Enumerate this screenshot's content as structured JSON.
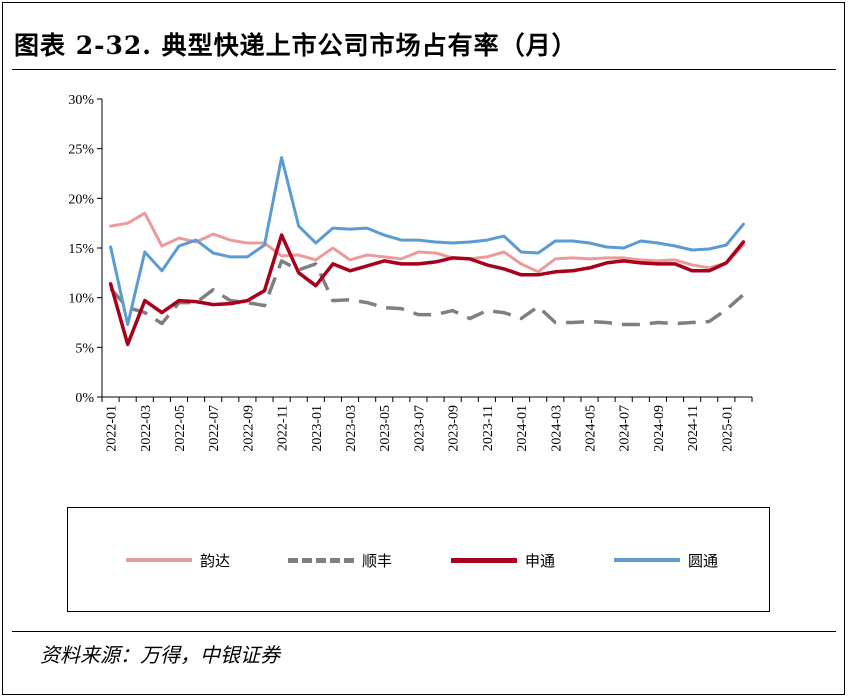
{
  "header": {
    "title": "图表 2-32. 典型快递上市公司市场占有率（月）"
  },
  "footer": {
    "source": "资料来源：万得，中银证券"
  },
  "colors": {
    "yunda": "#ec9b9b",
    "sf": "#7f7f7f",
    "sto": "#a8001c",
    "yto": "#5b9bd5"
  },
  "chart_data": {
    "type": "line",
    "title": "",
    "xlabel": "",
    "ylabel": "",
    "y_unit": "%",
    "ylim": [
      0,
      30
    ],
    "yticks": [
      "0%",
      "5%",
      "10%",
      "15%",
      "20%",
      "25%",
      "30%"
    ],
    "x": [
      "2022-01",
      "2022-02",
      "2022-03",
      "2022-04",
      "2022-05",
      "2022-06",
      "2022-07",
      "2022-08",
      "2022-09",
      "2022-10",
      "2022-11",
      "2022-12",
      "2023-01",
      "2023-02",
      "2023-03",
      "2023-04",
      "2023-05",
      "2023-06",
      "2023-07",
      "2023-08",
      "2023-09",
      "2023-10",
      "2023-11",
      "2023-12",
      "2024-01",
      "2024-02",
      "2024-03",
      "2024-04",
      "2024-05",
      "2024-06",
      "2024-07",
      "2024-08",
      "2024-09",
      "2024-10",
      "2024-11",
      "2024-12",
      "2025-01",
      "2025-02"
    ],
    "xtick_labels": [
      "2022-01",
      "2022-03",
      "2022-05",
      "2022-07",
      "2022-09",
      "2022-11",
      "2023-01",
      "2023-03",
      "2023-05",
      "2023-07",
      "2023-09",
      "2023-11",
      "2024-01",
      "2024-03",
      "2024-05",
      "2024-07",
      "2024-09",
      "2024-11",
      "2025-01"
    ],
    "legend_position": "bottom",
    "grid": false,
    "series": [
      {
        "name": "韵达",
        "key": "yunda",
        "style": "solid",
        "values": [
          17.2,
          17.5,
          18.5,
          15.2,
          16.0,
          15.6,
          16.4,
          15.8,
          15.5,
          15.5,
          14.2,
          14.3,
          13.8,
          15.0,
          13.8,
          14.3,
          14.1,
          13.9,
          14.6,
          14.5,
          14.0,
          13.9,
          14.1,
          14.6,
          13.4,
          12.6,
          13.9,
          14.0,
          13.9,
          14.0,
          14.0,
          13.8,
          13.7,
          13.8,
          13.3,
          13.0,
          13.5,
          15.3
        ]
      },
      {
        "name": "顺丰",
        "key": "sf",
        "style": "dashed",
        "values": [
          10.9,
          9.0,
          8.5,
          7.4,
          9.5,
          9.5,
          10.8,
          9.7,
          9.5,
          9.2,
          13.7,
          12.8,
          13.4,
          9.7,
          9.8,
          9.5,
          9.0,
          8.9,
          8.3,
          8.3,
          8.7,
          7.9,
          8.7,
          8.5,
          7.9,
          9.1,
          7.5,
          7.5,
          7.6,
          7.5,
          7.3,
          7.3,
          7.5,
          7.4,
          7.5,
          7.6,
          8.8,
          10.3
        ]
      },
      {
        "name": "申通",
        "key": "sto",
        "style": "solid",
        "values": [
          11.4,
          5.3,
          9.7,
          8.5,
          9.7,
          9.6,
          9.3,
          9.4,
          9.7,
          10.7,
          16.3,
          12.5,
          11.2,
          13.4,
          12.7,
          13.2,
          13.7,
          13.4,
          13.4,
          13.6,
          14.0,
          13.9,
          13.3,
          12.9,
          12.3,
          12.3,
          12.6,
          12.7,
          13.0,
          13.5,
          13.7,
          13.5,
          13.4,
          13.4,
          12.7,
          12.7,
          13.5,
          15.6
        ]
      },
      {
        "name": "圆通",
        "key": "yto",
        "style": "solid",
        "values": [
          15.1,
          7.3,
          14.6,
          12.7,
          15.2,
          15.8,
          14.5,
          14.1,
          14.1,
          15.3,
          24.1,
          17.2,
          15.5,
          17.0,
          16.9,
          17.0,
          16.3,
          15.8,
          15.8,
          15.6,
          15.5,
          15.6,
          15.8,
          16.2,
          14.6,
          14.5,
          15.7,
          15.7,
          15.5,
          15.1,
          15.0,
          15.7,
          15.5,
          15.2,
          14.8,
          14.9,
          15.3,
          17.4
        ]
      }
    ]
  }
}
